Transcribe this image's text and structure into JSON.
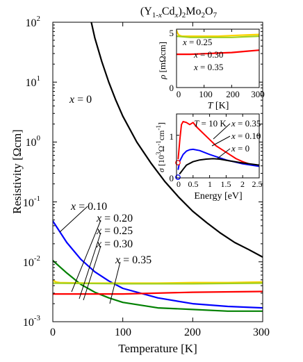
{
  "chart_data": [
    {
      "type": "line",
      "title": "(Y1-xCdx)2Mo2O7",
      "title_parts": {
        "open": "(Y",
        "sub1": "1-",
        "x1": "x",
        "cd": "Cd",
        "x2": "x",
        "close": ")",
        "sub2": "2",
        "mo": "Mo",
        "sub3": "2",
        "o": "O",
        "sub4": "7"
      },
      "xlabel": "Temperature [K]",
      "ylabel": "Resistivity [Ωcm]",
      "xlim": [
        0,
        300
      ],
      "ylim": [
        0.001,
        100
      ],
      "yscale": "log",
      "x_ticks": [
        "0",
        "100",
        "200",
        "300"
      ],
      "y_ticks": [
        {
          "base": "10",
          "exp": "-3"
        },
        {
          "base": "10",
          "exp": "-2"
        },
        {
          "base": "10",
          "exp": "-1"
        },
        {
          "base": "10",
          "exp": "0"
        },
        {
          "base": "10",
          "exp": "1"
        },
        {
          "base": "10",
          "exp": "2"
        }
      ],
      "series": [
        {
          "name": "x = 0",
          "color": "#000000",
          "x": [
            55,
            60,
            70,
            80,
            90,
            100,
            120,
            140,
            160,
            180,
            200,
            220,
            240,
            260,
            280,
            300
          ],
          "y": [
            100,
            55,
            22,
            10,
            5,
            2.7,
            1.0,
            0.45,
            0.22,
            0.12,
            0.07,
            0.045,
            0.03,
            0.021,
            0.016,
            0.012
          ]
        },
        {
          "name": "x = 0.10",
          "color": "#0000ff",
          "x": [
            0,
            20,
            40,
            60,
            80,
            100,
            150,
            200,
            250,
            300
          ],
          "y": [
            0.048,
            0.021,
            0.011,
            0.0068,
            0.0048,
            0.0036,
            0.0025,
            0.002,
            0.0018,
            0.0017
          ]
        },
        {
          "name": "x = 0.20",
          "color": "#008000",
          "x": [
            0,
            20,
            40,
            60,
            80,
            100,
            150,
            200,
            250,
            300
          ],
          "y": [
            0.0105,
            0.0065,
            0.0042,
            0.0031,
            0.0025,
            0.0021,
            0.0017,
            0.0016,
            0.0015,
            0.0015
          ]
        },
        {
          "name": "x = 0.25",
          "color": "#ffd400",
          "x": [
            0,
            5,
            10,
            50,
            100,
            150,
            200,
            250,
            300
          ],
          "y": [
            0.0049,
            0.0046,
            0.0045,
            0.0044,
            0.0044,
            0.0044,
            0.0045,
            0.0045,
            0.0046
          ]
        },
        {
          "name": "x = 0.30",
          "color": "#a0d020",
          "x": [
            0,
            100,
            200,
            300
          ],
          "y": [
            0.0044,
            0.0043,
            0.0043,
            0.0044
          ]
        },
        {
          "name": "x = 0.35",
          "color": "#ff0000",
          "x": [
            0,
            100,
            200,
            300
          ],
          "y": [
            0.0029,
            0.0029,
            0.0031,
            0.0032
          ]
        }
      ],
      "annotations": [
        {
          "text_var": "x",
          "text_rest": " = 0"
        },
        {
          "text_var": "x",
          "text_rest": " = 0.10"
        },
        {
          "text_var": "x",
          "text_rest": " = 0.20"
        },
        {
          "text_var": "x",
          "text_rest": " = 0.25"
        },
        {
          "text_var": "x",
          "text_rest": " = 0.30"
        },
        {
          "text_var": "x",
          "text_rest": " = 0.35"
        }
      ]
    },
    {
      "type": "line",
      "title": "",
      "xlabel_var": "T",
      "xlabel_rest": " [K]",
      "ylabel_var": "ρ",
      "ylabel_rest": " [mΩcm]",
      "xlim": [
        0,
        300
      ],
      "ylim": [
        0,
        5
      ],
      "x_ticks": [
        "0",
        "100",
        "200",
        "300"
      ],
      "y_ticks": [
        "0",
        "5"
      ],
      "series": [
        {
          "name": "x = 0.25",
          "color": "#ffd400",
          "x": [
            0,
            3,
            8,
            20,
            50,
            100,
            150,
            200,
            250,
            300
          ],
          "y": [
            4.9,
            4.7,
            4.5,
            4.4,
            4.4,
            4.4,
            4.4,
            4.45,
            4.5,
            4.55
          ]
        },
        {
          "name": "x = 0.30",
          "color": "#a0d020",
          "x": [
            0,
            50,
            100,
            150,
            200,
            250,
            300
          ],
          "y": [
            4.4,
            4.3,
            4.3,
            4.3,
            4.3,
            4.35,
            4.4
          ]
        },
        {
          "name": "x = 0.35",
          "color": "#ff0000",
          "x": [
            0,
            50,
            100,
            150,
            200,
            250,
            300
          ],
          "y": [
            2.85,
            2.85,
            2.9,
            2.95,
            3.0,
            3.1,
            3.2
          ]
        }
      ],
      "annotations": [
        {
          "text_var": "x",
          "text_rest": " = 0.25"
        },
        {
          "text_var": "x",
          "text_rest": " = 0.30"
        },
        {
          "text_var": "x",
          "text_rest": " = 0.35"
        }
      ]
    },
    {
      "type": "line",
      "title": "T = 10 K",
      "title_var": "T",
      "title_rest": " = 10 K",
      "xlabel": "Energy [eV]",
      "ylabel_var": "σ",
      "ylabel_rest": " [10",
      "ylabel_exp1": "3",
      "ylabel_mid": "Ω",
      "ylabel_exp2": "-1",
      "ylabel_cm": "cm",
      "ylabel_exp3": "-1",
      "ylabel_end": "]",
      "xlim": [
        0,
        2.5
      ],
      "ylim": [
        0,
        1.5
      ],
      "x_ticks": [
        "0",
        "0.5",
        "1",
        "1.5",
        "2",
        "2.5"
      ],
      "y_ticks": [
        "0",
        "1"
      ],
      "series": [
        {
          "name": "x = 0.35",
          "color": "#ff0000",
          "x": [
            0.05,
            0.1,
            0.15,
            0.2,
            0.3,
            0.4,
            0.5,
            0.6,
            0.8,
            1.0,
            1.2,
            1.5,
            1.8,
            2.0,
            2.3,
            2.5
          ],
          "y": [
            0.45,
            0.9,
            1.25,
            1.32,
            1.3,
            1.25,
            1.3,
            1.2,
            1.05,
            0.9,
            0.75,
            0.6,
            0.45,
            0.38,
            0.3,
            0.28
          ]
        },
        {
          "name": "x = 0.10",
          "color": "#0000ff",
          "x": [
            0.05,
            0.1,
            0.2,
            0.3,
            0.4,
            0.5,
            0.7,
            1.0,
            1.5,
            2.0,
            2.5
          ],
          "y": [
            0.2,
            0.4,
            0.55,
            0.63,
            0.66,
            0.67,
            0.64,
            0.55,
            0.42,
            0.33,
            0.27
          ]
        },
        {
          "name": "x = 0",
          "color": "#000000",
          "x": [
            0.1,
            0.2,
            0.3,
            0.5,
            0.7,
            0.9,
            1.1,
            1.3,
            1.6,
            2.0,
            2.5
          ],
          "y": [
            0.1,
            0.2,
            0.3,
            0.38,
            0.42,
            0.44,
            0.45,
            0.44,
            0.4,
            0.35,
            0.3
          ]
        }
      ],
      "dc_points": [
        {
          "name": "x = 0.35",
          "color": "#ff0000",
          "x": 0,
          "y": 0.34
        },
        {
          "name": "x = 0.10",
          "color": "#0000ff",
          "x": 0,
          "y": 0.0
        }
      ],
      "annotations": [
        {
          "text_var": "x",
          "text_rest": " = 0.35"
        },
        {
          "text_var": "x",
          "text_rest": " = 0.10"
        },
        {
          "text_var": "x",
          "text_rest": " = 0"
        }
      ]
    }
  ]
}
